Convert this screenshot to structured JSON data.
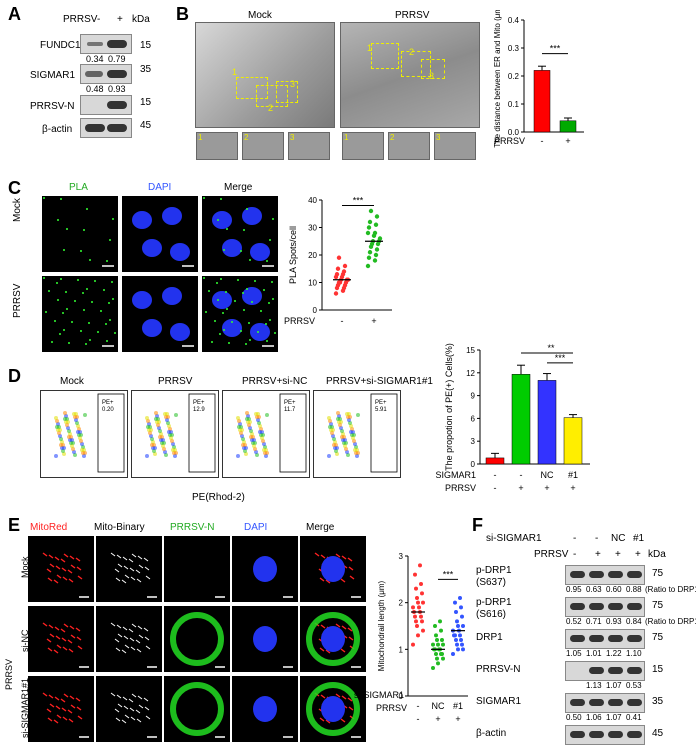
{
  "panels": {
    "A": "A",
    "B": "B",
    "C": "C",
    "D": "D",
    "E": "E",
    "F": "F"
  },
  "panel_a": {
    "header_prrsv": "PRRSV",
    "header_minus": "-",
    "header_plus": "+",
    "kda": "kDa",
    "rows": [
      {
        "label": "FUNDC1",
        "kda": "15",
        "ratios": [
          "0.34",
          "0.79"
        ]
      },
      {
        "label": "SIGMAR1",
        "kda": "35",
        "ratios": [
          "0.48",
          "0.93"
        ]
      },
      {
        "label": "PRRSV-N",
        "kda": "15",
        "ratios": []
      },
      {
        "label": "β-actin",
        "kda": "45",
        "ratios": []
      }
    ]
  },
  "panel_b": {
    "mock": "Mock",
    "prrsv": "PRRSV",
    "boxes": [
      "1",
      "2",
      "3"
    ],
    "chart_data": {
      "type": "bar",
      "categories": [
        "-",
        "+"
      ],
      "values": [
        0.22,
        0.04
      ],
      "errors": [
        0.015,
        0.01
      ],
      "colors": [
        "#ff0000",
        "#00aa00"
      ],
      "ylabel": "The distance between ER and Mito (μm)",
      "xlabel": "PRRSV",
      "ylim": [
        0,
        0.4
      ],
      "yticks": [
        "0.0",
        "0.1",
        "0.2",
        "0.3",
        "0.4"
      ],
      "sig": "***"
    }
  },
  "panel_c": {
    "cols": [
      "PLA",
      "DAPI",
      "Merge"
    ],
    "rows": [
      "Mock",
      "PRRSV"
    ],
    "chart_data": {
      "type": "scatter",
      "categories": [
        "-",
        "+"
      ],
      "mock_values": [
        6,
        7,
        8,
        8,
        9,
        9,
        10,
        10,
        10,
        11,
        11,
        11,
        12,
        12,
        13,
        13,
        14,
        15,
        16,
        19
      ],
      "prrsv_values": [
        16,
        18,
        19,
        20,
        21,
        22,
        23,
        24,
        24,
        25,
        25,
        26,
        27,
        28,
        28,
        30,
        31,
        32,
        34,
        36
      ],
      "mock_mean": 11,
      "prrsv_mean": 25,
      "ylabel": "PLA Spots/cell",
      "xlabel": "PRRSV",
      "ylim": [
        0,
        40
      ],
      "yticks": [
        "0",
        "10",
        "20",
        "30",
        "40"
      ],
      "colors": [
        "#ff3333",
        "#22bb22"
      ],
      "sig": "***"
    }
  },
  "panel_d": {
    "plots": [
      {
        "title": "Mock",
        "gate": "PE+\n0.20"
      },
      {
        "title": "PRRSV",
        "gate": "PE+\n12.9"
      },
      {
        "title": "PRRSV+si-NC",
        "gate": "PE+\n11.7"
      },
      {
        "title": "PRRSV+si-SIGMAR1#1",
        "gate": "PE+\n5.91"
      }
    ],
    "xaxis": "PE(Rhod-2)",
    "chart_data": {
      "type": "bar",
      "categories": [
        "1",
        "2",
        "3",
        "4"
      ],
      "values": [
        0.8,
        11.8,
        11.0,
        6.1
      ],
      "errors": [
        0.6,
        1.2,
        0.9,
        0.4
      ],
      "colors": [
        "#ff0000",
        "#00cc00",
        "#3333ff",
        "#ffee00"
      ],
      "ylabel": "The propotion of PE(+) Cells(%)",
      "ylim": [
        0,
        15
      ],
      "yticks": [
        "0",
        "3",
        "6",
        "9",
        "12",
        "15"
      ],
      "row1_label": "si-SIGMAR1",
      "row1": [
        "-",
        "-",
        "NC",
        "#1"
      ],
      "row2_label": "PRRSV",
      "row2": [
        "-",
        "+",
        "+",
        "+"
      ],
      "sig1": "**",
      "sig2": "***"
    }
  },
  "panel_e": {
    "cols": [
      "MitoRed",
      "Mito-Binary",
      "PRRSV-N",
      "DAPI",
      "Merge"
    ],
    "rows": [
      "Mock",
      "si-NC",
      "si-SIGMAR1#1"
    ],
    "group": "PRRSV",
    "chart_data": {
      "type": "scatter",
      "categories": [
        "-",
        "NC",
        "#1"
      ],
      "values_1": [
        1.1,
        1.3,
        1.4,
        1.5,
        1.6,
        1.6,
        1.7,
        1.7,
        1.8,
        1.8,
        1.9,
        1.9,
        2.0,
        2.0,
        2.1,
        2.2,
        2.3,
        2.4,
        2.6,
        2.8
      ],
      "values_2": [
        0.6,
        0.7,
        0.8,
        0.8,
        0.9,
        0.9,
        0.9,
        1.0,
        1.0,
        1.0,
        1.0,
        1.1,
        1.1,
        1.1,
        1.2,
        1.2,
        1.3,
        1.4,
        1.5,
        1.6
      ],
      "values_3": [
        0.9,
        1.0,
        1.0,
        1.1,
        1.1,
        1.2,
        1.2,
        1.3,
        1.3,
        1.3,
        1.4,
        1.4,
        1.5,
        1.5,
        1.6,
        1.7,
        1.8,
        1.9,
        2.0,
        2.1
      ],
      "means": [
        1.8,
        1.0,
        1.4
      ],
      "colors": [
        "#ff3333",
        "#22bb22",
        "#3355ff"
      ],
      "ylabel": "Mitochondrail length (μm)",
      "ylim": [
        0,
        3
      ],
      "yticks": [
        "0",
        "1",
        "2",
        "3"
      ],
      "row1_label": "si-SIGMAR1",
      "row1": [
        "-",
        "NC",
        "#1"
      ],
      "row2_label": "PRRSV",
      "row2": [
        "-",
        "+",
        "+"
      ],
      "sig": "***"
    }
  },
  "panel_f": {
    "row1_label": "si-SIGMAR1",
    "row1": [
      "-",
      "-",
      "NC",
      "#1"
    ],
    "row2_label": "PRRSV",
    "row2": [
      "-",
      "+",
      "+",
      "+"
    ],
    "kda": "kDa",
    "blots": [
      {
        "label": "p-DRP1\n(S637)",
        "kda": "75",
        "ratios": [
          "0.95",
          "0.63",
          "0.60",
          "0.88"
        ],
        "note": "(Ratio to DRP1)"
      },
      {
        "label": "p-DRP1\n(S616)",
        "kda": "75",
        "ratios": [
          "0.52",
          "0.71",
          "0.93",
          "0.84"
        ],
        "note": "(Ratio to DRP1)"
      },
      {
        "label": "DRP1",
        "kda": "75",
        "ratios": [
          "1.05",
          "1.01",
          "1.22",
          "1.10"
        ],
        "note": ""
      },
      {
        "label": "PRRSV-N",
        "kda": "15",
        "ratios": [
          "",
          "1.13",
          "1.07",
          "0.53"
        ],
        "note": ""
      },
      {
        "label": "SIGMAR1",
        "kda": "35",
        "ratios": [
          "0.50",
          "1.06",
          "1.07",
          "0.41"
        ],
        "note": ""
      },
      {
        "label": "β-actin",
        "kda": "45",
        "ratios": [],
        "note": ""
      }
    ]
  }
}
